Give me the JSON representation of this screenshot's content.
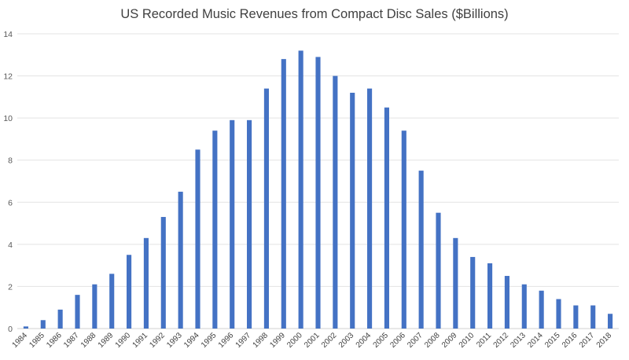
{
  "chart_data": {
    "type": "bar",
    "title": "US Recorded Music Revenues from Compact Disc Sales ($Billions)",
    "xlabel": "",
    "ylabel": "",
    "ylim": [
      0,
      14
    ],
    "yticks": [
      0,
      2,
      4,
      6,
      8,
      10,
      12,
      14
    ],
    "grid": true,
    "legend": "none",
    "bar_color": "#4472C4",
    "categories": [
      "1984",
      "1985",
      "1986",
      "1987",
      "1988",
      "1989",
      "1990",
      "1991",
      "1992",
      "1993",
      "1994",
      "1995",
      "1996",
      "1997",
      "1998",
      "1999",
      "2000",
      "2001",
      "2002",
      "2003",
      "2004",
      "2005",
      "2006",
      "2007",
      "2008",
      "2009",
      "2010",
      "2011",
      "2012",
      "2013",
      "2014",
      "2015",
      "2016",
      "2017",
      "2018"
    ],
    "values": [
      0.1,
      0.4,
      0.9,
      1.6,
      2.1,
      2.6,
      3.5,
      4.3,
      5.3,
      6.5,
      8.5,
      9.4,
      9.9,
      9.9,
      11.4,
      12.8,
      13.2,
      12.9,
      12.0,
      11.2,
      11.4,
      10.5,
      9.4,
      7.5,
      5.5,
      4.3,
      3.4,
      3.1,
      2.5,
      2.1,
      1.8,
      1.4,
      1.1,
      1.1,
      0.7
    ]
  }
}
